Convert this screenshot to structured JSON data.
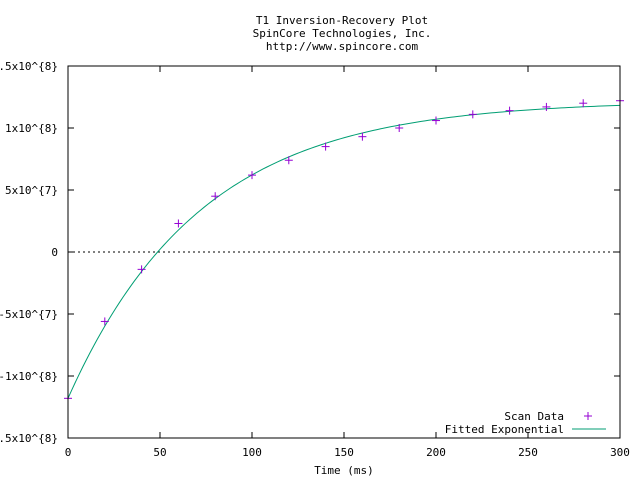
{
  "chart_data": {
    "type": "scatter",
    "title_lines": [
      "T1 Inversion-Recovery Plot",
      "SpinCore Technologies, Inc.",
      "http://www.spincore.com"
    ],
    "xlabel": "Time (ms)",
    "ylabel": "",
    "xlim": [
      0,
      300
    ],
    "ylim": [
      -150000000,
      150000000
    ],
    "x_ticks": [
      0,
      50,
      100,
      150,
      200,
      250,
      300
    ],
    "x_tick_labels": [
      "0",
      "50",
      "100",
      "150",
      "200",
      "250",
      "300"
    ],
    "y_ticks": [
      150000000,
      100000000,
      50000000,
      0,
      -50000000,
      -100000000,
      -150000000
    ],
    "y_tick_labels": [
      "1.5x10^{8}",
      "1x10^{8}",
      "5x10^{7}",
      "0",
      "-5x10^{7}",
      "-1x10^{8}",
      "-1.5x10^{8}"
    ],
    "zero_line": "dashed",
    "legend_position": "bottom-right",
    "series": [
      {
        "name": "Scan Data",
        "kind": "points",
        "marker": "+",
        "color": "#9400d3",
        "x": [
          0,
          20,
          40,
          60,
          80,
          100,
          120,
          140,
          160,
          180,
          200,
          220,
          240,
          260,
          280,
          300
        ],
        "y": [
          -118000000,
          -56000000,
          -14000000,
          23000000,
          45000000,
          62000000,
          74000000,
          85000000,
          93000000,
          100000000,
          106000000,
          111000000,
          114000000,
          117000000,
          120000000,
          122000000
        ]
      },
      {
        "name": "Fitted Exponential",
        "kind": "line",
        "color": "#009e73",
        "model": {
          "A": 122000000,
          "B": 240000000,
          "T1": 72
        }
      }
    ]
  }
}
